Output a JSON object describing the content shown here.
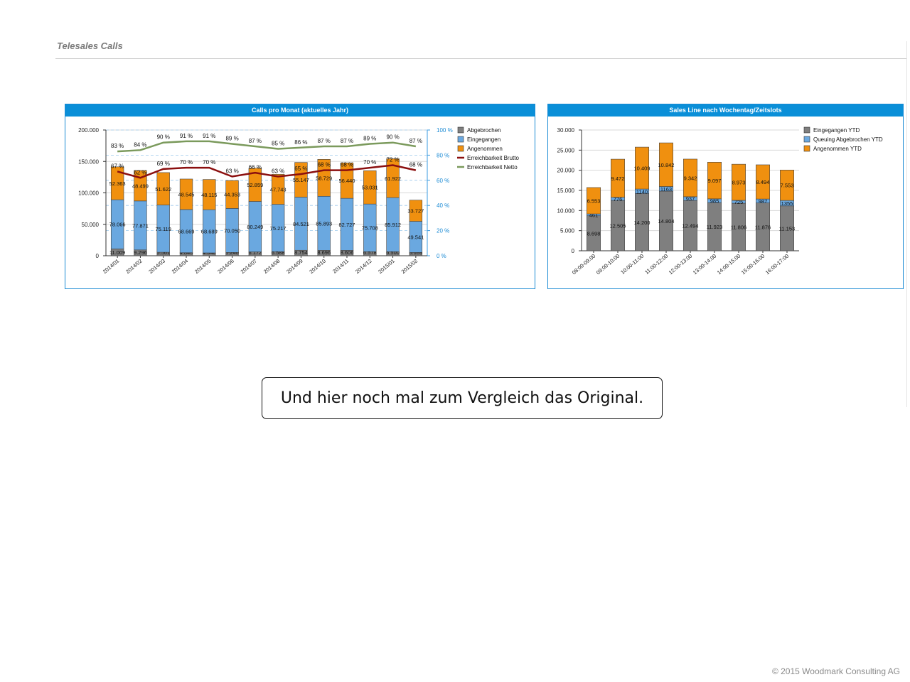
{
  "page": {
    "title": "Telesales Calls",
    "callout": "Und hier noch mal zum Vergleich das Original.",
    "footer": "© 2015 Woodmark Consulting AG"
  },
  "chart_data": [
    {
      "type": "bar",
      "stacked": true,
      "title": "Calls pro Monat (aktuelles Jahr)",
      "categories": [
        "2014/01",
        "2014/02",
        "2014/03",
        "2014/04",
        "2014/05",
        "2014/06",
        "2014/07",
        "2014/08",
        "2014/09",
        "2014/10",
        "2014/11",
        "2014/12",
        "2015/01",
        "2015/02"
      ],
      "ylim": [
        0,
        200000
      ],
      "yticks": [
        "0",
        "50.000",
        "100.000",
        "150.000",
        "200.000"
      ],
      "y2lim": [
        0,
        100
      ],
      "y2ticks": [
        "0 %",
        "20 %",
        "40 %",
        "60 %",
        "80 %",
        "100 %"
      ],
      "legend_position": "top-right",
      "series": [
        {
          "name": "Abgebrochen",
          "color": "#7f7f7f",
          "values": [
            11009,
            9296,
            5561,
            4846,
            4540,
            5240,
            6172,
            6588,
            8754,
            8696,
            8606,
            6578,
            6500,
            5189
          ],
          "labels": [
            "11.009",
            "9.296",
            "5.561",
            "4.846",
            "4.540",
            "5.240",
            "6.172",
            "6.588",
            "8.754",
            "8.696",
            "8.606",
            "6.578",
            "6.500",
            "5.189"
          ]
        },
        {
          "name": "Eingegangen",
          "color": "#6aa8e0",
          "values": [
            78066,
            77871,
            75119,
            68669,
            68689,
            70050,
            80249,
            75217,
            84521,
            85893,
            82727,
            75708,
            85912,
            49541
          ],
          "labels": [
            "78.066",
            "77.871",
            "75.119",
            "68.669",
            "68.689",
            "70.050",
            "80.249",
            "75.217",
            "84.521",
            "85.893",
            "82.727",
            "75.708",
            "85.912",
            "49.541"
          ]
        },
        {
          "name": "Angenommen",
          "color": "#f0900f",
          "values": [
            52363,
            48499,
            51622,
            48545,
            48115,
            44353,
            52859,
            47743,
            55147,
            58729,
            56440,
            53031,
            61922,
            33727
          ],
          "labels": [
            "52.363",
            "48.499",
            "51.622",
            "48.545",
            "48.115",
            "44.353",
            "52.859",
            "47.743",
            "55.147",
            "58.729",
            "56.440",
            "53.031",
            "61.922",
            "33.727"
          ]
        }
      ],
      "lines": [
        {
          "name": "Erreichbarkeit Brutto",
          "color": "#8b0f0f",
          "axis": "right",
          "values": [
            67,
            62,
            69,
            70,
            70,
            63,
            66,
            63,
            65,
            68,
            68,
            70,
            72,
            68
          ],
          "labels": [
            "67 %",
            "62 %",
            "69 %",
            "70 %",
            "70 %",
            "63 %",
            "66 %",
            "63 %",
            "65 %",
            "68 %",
            "68 %",
            "70 %",
            "72 %",
            "68 %"
          ]
        },
        {
          "name": "Erreichbarkeit Netto",
          "color": "#7b9a5c",
          "axis": "right",
          "values": [
            83,
            84,
            90,
            91,
            91,
            89,
            87,
            85,
            86,
            87,
            87,
            89,
            90,
            87
          ],
          "labels": [
            "83 %",
            "84 %",
            "90 %",
            "91 %",
            "91 %",
            "89 %",
            "87 %",
            "85 %",
            "86 %",
            "87 %",
            "87 %",
            "89 %",
            "90 %",
            "87 %"
          ]
        }
      ]
    },
    {
      "type": "bar",
      "stacked": true,
      "title": "Sales Line nach Wochentag/Zeitslots",
      "categories": [
        "08:00-09:00",
        "09:00-10:00",
        "10:00-11:00",
        "11:00-12:00",
        "12:00-13:00",
        "13:00-14:00",
        "14:00-15:00",
        "15:00-16:00",
        "16:00-17:00"
      ],
      "ylim": [
        0,
        30000
      ],
      "yticks": [
        "0",
        "5.000",
        "10.000",
        "15.000",
        "20.000",
        "25.000",
        "30.000"
      ],
      "legend_position": "top-right",
      "series": [
        {
          "name": "Eingegangen YTD",
          "color": "#7f7f7f",
          "values": [
            8698,
            12505,
            14200,
            14804,
            12494,
            11923,
            11806,
            11876,
            11153
          ],
          "labels": [
            "8.698",
            "12.505",
            "14.200",
            "14.804",
            "12.494",
            "11.923",
            "11.806",
            "11.876",
            "11.153"
          ]
        },
        {
          "name": "Queuing Abgebrochen YTD",
          "color": "#6aa8e0",
          "values": [
            461,
            776,
            1140,
            1163,
            937,
            985,
            725,
            987,
            1355
          ],
          "labels": [
            "461",
            "776",
            "1140",
            "1163",
            "937",
            "985",
            "725",
            "987",
            "1355"
          ]
        },
        {
          "name": "Angenommen YTD",
          "color": "#f0900f",
          "values": [
            6553,
            9472,
            10409,
            10842,
            9342,
            9097,
            8973,
            8494,
            7553
          ],
          "labels": [
            "6.553",
            "9.472",
            "10.409",
            "10.842",
            "9.342",
            "9.097",
            "8.973",
            "8.494",
            "7.553"
          ]
        }
      ]
    }
  ]
}
